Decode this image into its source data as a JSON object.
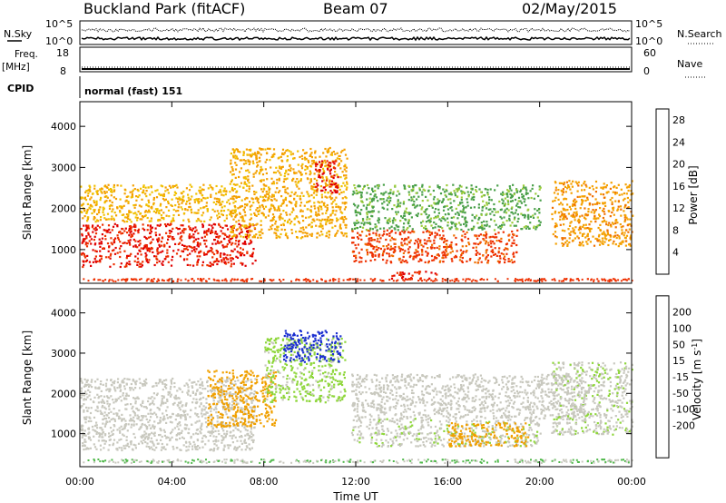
{
  "header": {
    "station": "Buckland Park (fitACF)",
    "beam": "Beam 07",
    "date": "02/May/2015"
  },
  "top_panels": {
    "nsky": {
      "left_label": "N.Sky",
      "right_label": "N.Search",
      "left_ticks": [
        "10^5",
        "10^0"
      ],
      "right_ticks": [
        "10^5",
        "10^0"
      ]
    },
    "freq": {
      "left_label_line1": "Freq.",
      "left_label_line2": "[MHz]",
      "right_label": "Nave",
      "left_ticks": [
        "18",
        "8"
      ],
      "right_ticks": [
        "60",
        "0"
      ]
    },
    "cpid": {
      "label": "CPID",
      "value": "normal (fast) 151"
    }
  },
  "colors": {
    "power_scale": [
      "#0000ff",
      "#2f5fa0",
      "#3b7f6a",
      "#4aa04a",
      "#9ccc3a",
      "#f0c000",
      "#f4a000",
      "#f07000",
      "#ee3000",
      "#e00000"
    ],
    "velocity_scale": [
      "#e00000",
      "#f03a00",
      "#f47a00",
      "#f0a000",
      "#c8c8be",
      "#c8c8be",
      "#8ed63a",
      "#4fb84a",
      "#2f7f9c",
      "#1b2fd0"
    ]
  },
  "chart_data": [
    {
      "type": "heatmap",
      "title": "",
      "xlabel": "Time UT",
      "ylabel": "Slant Range [km]",
      "x_ticks": [
        "00:00",
        "04:00",
        "08:00",
        "12:00",
        "16:00",
        "20:00",
        "00:00"
      ],
      "y_ticks": [
        "1000",
        "2000",
        "3000",
        "4000"
      ],
      "x_range_hours": [
        0,
        24
      ],
      "ylim": [
        180,
        4600
      ],
      "colorbar_label": "Power [dB]",
      "colorbar_ticks": [
        "4",
        "8",
        "12",
        "16",
        "20",
        "24",
        "28"
      ],
      "color_range": [
        0,
        30
      ],
      "features": [
        {
          "t0": 0.0,
          "t1": 7.6,
          "r0": 600,
          "r1": 1650,
          "value": 27
        },
        {
          "t0": 0.0,
          "t1": 6.5,
          "r0": 1700,
          "r1": 2600,
          "value": 18
        },
        {
          "t0": 6.5,
          "t1": 11.6,
          "r0": 1300,
          "r1": 3500,
          "value": 19
        },
        {
          "t0": 10.2,
          "t1": 11.2,
          "r0": 2400,
          "r1": 3200,
          "value": 28
        },
        {
          "t0": 11.8,
          "t1": 19.0,
          "r0": 700,
          "r1": 1500,
          "value": 25
        },
        {
          "t0": 11.8,
          "t1": 20.0,
          "r0": 1500,
          "r1": 2600,
          "value": 11
        },
        {
          "t0": 13.5,
          "t1": 15.5,
          "r0": 300,
          "r1": 500,
          "value": 27
        },
        {
          "t0": 20.5,
          "t1": 24.0,
          "r0": 1100,
          "r1": 2700,
          "value": 20
        }
      ]
    },
    {
      "type": "heatmap",
      "title": "",
      "xlabel": "Time UT",
      "ylabel": "Slant Range [km]",
      "x_ticks": [
        "00:00",
        "04:00",
        "08:00",
        "12:00",
        "16:00",
        "20:00",
        "00:00"
      ],
      "y_ticks": [
        "1000",
        "2000",
        "3000",
        "4000"
      ],
      "x_range_hours": [
        0,
        24
      ],
      "ylim": [
        180,
        4600
      ],
      "colorbar_label": "Velocity [m s^-1]",
      "colorbar_ticks": [
        "200",
        "100",
        "50",
        "15",
        "-15",
        "-50",
        "-100",
        "-200"
      ],
      "color_range": [
        -250,
        250
      ],
      "features": [
        {
          "t0": 0.0,
          "t1": 7.6,
          "r0": 600,
          "r1": 2400,
          "value": 0
        },
        {
          "t0": 5.5,
          "t1": 8.5,
          "r0": 1200,
          "r1": 2600,
          "value": -70
        },
        {
          "t0": 8.0,
          "t1": 11.5,
          "r0": 1800,
          "r1": 3400,
          "value": 60
        },
        {
          "t0": 8.8,
          "t1": 11.3,
          "r0": 2800,
          "r1": 3600,
          "value": 220
        },
        {
          "t0": 11.8,
          "t1": 20.0,
          "r0": 700,
          "r1": 1400,
          "value": 40
        },
        {
          "t0": 16.0,
          "t1": 19.5,
          "r0": 700,
          "r1": 1300,
          "value": -70
        },
        {
          "t0": 11.8,
          "t1": 22.0,
          "r0": 1400,
          "r1": 2500,
          "value": 0
        },
        {
          "t0": 20.5,
          "t1": 24.0,
          "r0": 1000,
          "r1": 2800,
          "value": 40
        }
      ]
    }
  ]
}
